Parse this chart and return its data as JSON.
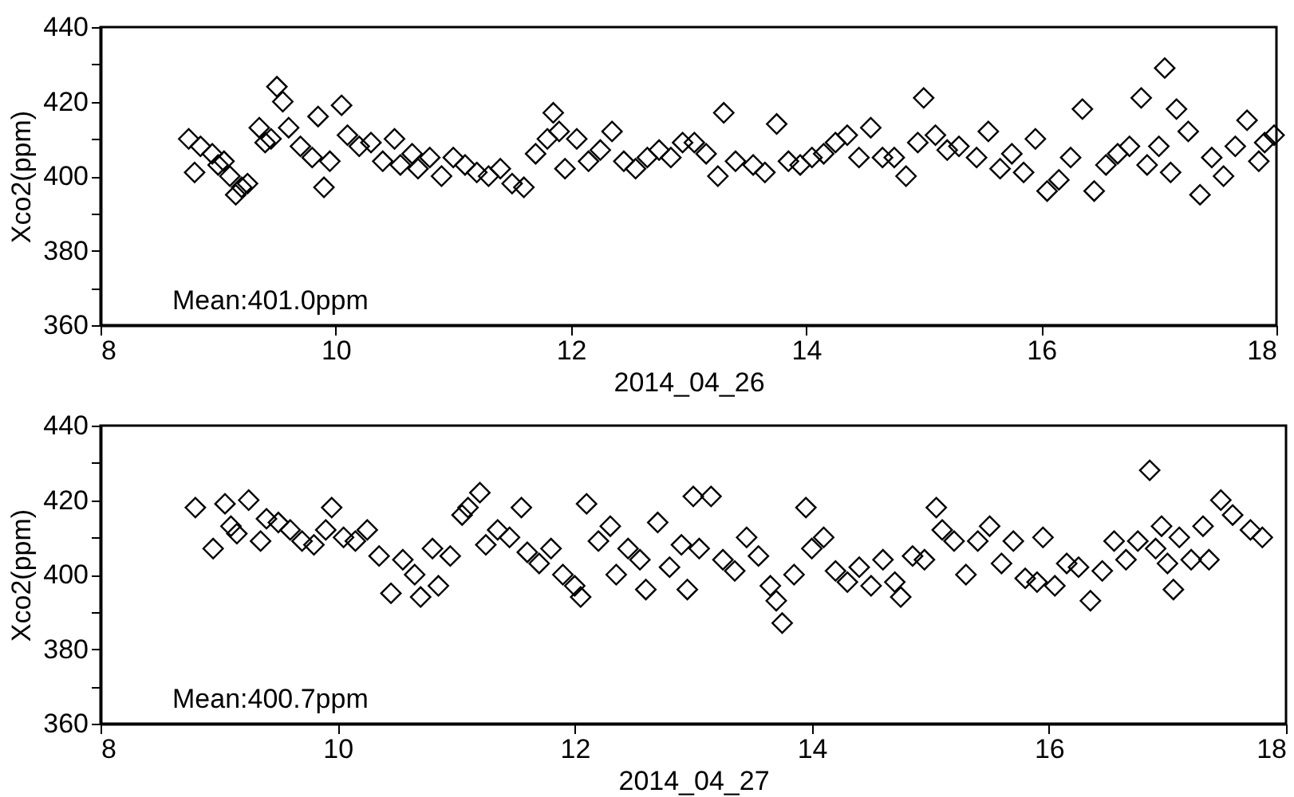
{
  "chart_data": [
    {
      "type": "scatter",
      "xlabel": "2014_04_26",
      "ylabel": "Xco2(ppm)",
      "xlim": [
        8,
        18
      ],
      "xticks": [
        8,
        10,
        12,
        14,
        16,
        18
      ],
      "ylim": [
        360,
        440
      ],
      "yticks": [
        360,
        {
          "value": 370,
          "label": null
        },
        380,
        {
          "value": 390,
          "label": null
        },
        400,
        {
          "value": 410,
          "label": null
        },
        420,
        {
          "value": 430,
          "label": null
        },
        440
      ],
      "marker": "diamond",
      "color": "#000000",
      "annotations": [
        "Mean:401.0ppm"
      ],
      "x": [
        8.75,
        8.8,
        8.85,
        8.95,
        9.0,
        9.05,
        9.1,
        9.15,
        9.2,
        9.25,
        9.35,
        9.4,
        9.45,
        9.5,
        9.55,
        9.6,
        9.7,
        9.8,
        9.85,
        9.9,
        9.95,
        10.05,
        10.1,
        10.2,
        10.3,
        10.4,
        10.5,
        10.55,
        10.65,
        10.7,
        10.8,
        10.9,
        11.0,
        11.1,
        11.2,
        11.3,
        11.4,
        11.5,
        11.6,
        11.7,
        11.8,
        11.85,
        11.9,
        11.95,
        12.05,
        12.15,
        12.25,
        12.35,
        12.45,
        12.55,
        12.65,
        12.75,
        12.85,
        12.95,
        13.05,
        13.15,
        13.25,
        13.3,
        13.4,
        13.55,
        13.65,
        13.75,
        13.85,
        13.95,
        14.05,
        14.15,
        14.25,
        14.35,
        14.45,
        14.55,
        14.65,
        14.75,
        14.85,
        14.95,
        15.0,
        15.1,
        15.2,
        15.3,
        15.45,
        15.55,
        15.65,
        15.75,
        15.85,
        15.95,
        16.05,
        16.15,
        16.25,
        16.35,
        16.45,
        16.55,
        16.65,
        16.75,
        16.85,
        16.9,
        17.0,
        17.05,
        17.1,
        17.15,
        17.25,
        17.35,
        17.45,
        17.55,
        17.65,
        17.75,
        17.85,
        17.9,
        17.98
      ],
      "values": [
        410,
        401,
        408,
        406,
        403,
        404,
        400,
        395,
        397,
        398,
        413,
        409,
        410,
        424,
        420,
        413,
        408,
        405,
        416,
        397,
        404,
        419,
        411,
        408,
        409,
        404,
        410,
        403,
        406,
        402,
        405,
        400,
        405,
        403,
        401,
        400,
        402,
        398,
        397,
        406,
        410,
        417,
        412,
        402,
        410,
        404,
        407,
        412,
        404,
        402,
        405,
        407,
        405,
        409,
        409,
        406,
        400,
        417,
        404,
        403,
        401,
        414,
        404,
        403,
        405,
        406,
        409,
        411,
        405,
        413,
        405,
        405,
        400,
        409,
        421,
        411,
        407,
        408,
        405,
        412,
        402,
        406,
        401,
        410,
        396,
        399,
        405,
        418,
        396,
        403,
        406,
        408,
        421,
        403,
        408,
        429,
        401,
        418,
        412,
        395,
        405,
        400,
        408,
        415,
        404,
        409,
        411
      ]
    },
    {
      "type": "scatter",
      "xlabel": "2014_04_27",
      "ylabel": "Xco2(ppm)",
      "xlim": [
        8,
        18
      ],
      "xticks": [
        8,
        10,
        12,
        14,
        16,
        18
      ],
      "ylim": [
        360,
        440
      ],
      "yticks": [
        360,
        {
          "value": 370,
          "label": null
        },
        380,
        {
          "value": 390,
          "label": null
        },
        400,
        {
          "value": 410,
          "label": null
        },
        420,
        {
          "value": 430,
          "label": null
        },
        440
      ],
      "marker": "diamond",
      "color": "#000000",
      "annotations": [
        "Mean:400.7ppm"
      ],
      "x": [
        8.8,
        8.95,
        9.05,
        9.1,
        9.15,
        9.25,
        9.35,
        9.4,
        9.5,
        9.6,
        9.7,
        9.8,
        9.9,
        9.95,
        10.05,
        10.15,
        10.25,
        10.35,
        10.45,
        10.55,
        10.65,
        10.7,
        10.8,
        10.85,
        10.95,
        11.05,
        11.1,
        11.2,
        11.25,
        11.35,
        11.45,
        11.55,
        11.6,
        11.7,
        11.8,
        11.9,
        12.0,
        12.05,
        12.1,
        12.2,
        12.3,
        12.35,
        12.45,
        12.55,
        12.6,
        12.7,
        12.8,
        12.9,
        12.95,
        13.0,
        13.05,
        13.15,
        13.25,
        13.35,
        13.45,
        13.55,
        13.65,
        13.7,
        13.75,
        13.85,
        13.95,
        14.0,
        14.1,
        14.2,
        14.3,
        14.4,
        14.5,
        14.6,
        14.7,
        14.75,
        14.85,
        14.95,
        15.05,
        15.1,
        15.2,
        15.3,
        15.4,
        15.5,
        15.6,
        15.7,
        15.8,
        15.9,
        15.95,
        16.05,
        16.15,
        16.25,
        16.35,
        16.45,
        16.55,
        16.65,
        16.75,
        16.85,
        16.9,
        16.95,
        17.0,
        17.05,
        17.1,
        17.2,
        17.3,
        17.35,
        17.45,
        17.55,
        17.7,
        17.8
      ],
      "values": [
        418,
        407,
        419,
        413,
        411,
        420,
        409,
        415,
        414,
        412,
        409,
        408,
        412,
        418,
        410,
        409,
        412,
        405,
        395,
        404,
        400,
        394,
        407,
        397,
        405,
        416,
        418,
        422,
        408,
        412,
        410,
        418,
        406,
        403,
        407,
        400,
        397,
        394,
        419,
        409,
        413,
        400,
        407,
        404,
        396,
        414,
        402,
        408,
        396,
        421,
        407,
        421,
        404,
        401,
        410,
        405,
        397,
        393,
        387,
        400,
        418,
        407,
        410,
        401,
        398,
        402,
        397,
        404,
        398,
        394,
        405,
        404,
        418,
        412,
        409,
        400,
        409,
        413,
        403,
        409,
        399,
        398,
        410,
        397,
        403,
        402,
        393,
        401,
        409,
        404,
        409,
        428,
        407,
        413,
        403,
        396,
        410,
        404,
        413,
        404,
        420,
        416,
        412,
        410
      ]
    }
  ]
}
